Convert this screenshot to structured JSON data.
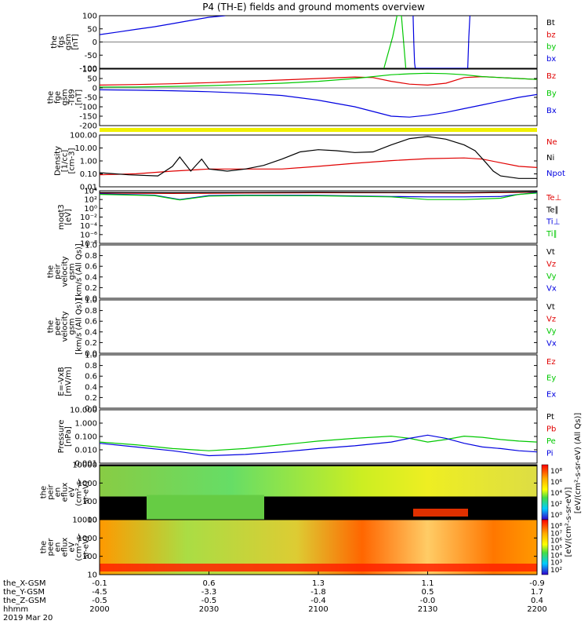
{
  "title": "P4 (TH-E) fields and ground moments overview",
  "colors": {
    "black": "#000000",
    "red": "#e00000",
    "green": "#00c800",
    "blue": "#0000e0",
    "yellow": "#f0f000"
  },
  "panels": [
    {
      "id": "fgs",
      "ylabel": [
        "the",
        "fgs",
        "gsm",
        "[nT]"
      ],
      "ticks": [
        "100",
        "50",
        "0",
        "-50",
        "-100"
      ],
      "legend": [
        {
          "label": "Bt",
          "color": "#000000"
        },
        {
          "label": "bz",
          "color": "#e00000"
        },
        {
          "label": "by",
          "color": "#00c800"
        },
        {
          "label": "bx",
          "color": "#0000e0"
        }
      ]
    },
    {
      "id": "fge",
      "ylabel": [
        "the",
        "fge",
        "gsm",
        "-T89",
        "[nT]"
      ],
      "ticks": [
        "100",
        "50",
        "0",
        "-50",
        "-100",
        "-150",
        "-200"
      ],
      "legend": [
        {
          "label": "Bz",
          "color": "#e00000"
        },
        {
          "label": "By",
          "color": "#00c800"
        },
        {
          "label": "Bx",
          "color": "#0000e0"
        }
      ]
    },
    {
      "id": "density",
      "ylabel": [
        "Density",
        "[1/cc]",
        "[cm-3]"
      ],
      "ticks": [
        "100.00",
        "10.00",
        "1.00",
        "0.10",
        "0.01"
      ],
      "legend": [
        {
          "label": "Ne",
          "color": "#e00000"
        },
        {
          "label": "Ni",
          "color": "#000000"
        },
        {
          "label": "Npot",
          "color": "#0000e0"
        }
      ]
    },
    {
      "id": "temperature",
      "ylabel": [
        "moqt3",
        "[eV]"
      ],
      "ticks": [
        "10⁴",
        "10²",
        "10⁰",
        "10⁻²",
        "10⁻⁴",
        "10⁻⁶",
        "10⁻⁸"
      ],
      "legend": [
        {
          "label": "Te⊥",
          "color": "#e00000"
        },
        {
          "label": "Te∥",
          "color": "#000000"
        },
        {
          "label": "Ti⊥",
          "color": "#0000e0"
        },
        {
          "label": "Ti∥",
          "color": "#00c800"
        }
      ]
    },
    {
      "id": "peir_velocity",
      "ylabel": [
        "the",
        "peir",
        "velocity",
        "gsm",
        "[km/s (All Qs)]"
      ],
      "ticks": [
        "1.0",
        "0.8",
        "0.6",
        "0.4",
        "0.2",
        "0.0"
      ],
      "legend": [
        {
          "label": "Vt",
          "color": "#000000"
        },
        {
          "label": "Vz",
          "color": "#e00000"
        },
        {
          "label": "Vy",
          "color": "#00c800"
        },
        {
          "label": "Vx",
          "color": "#0000e0"
        }
      ]
    },
    {
      "id": "peer_velocity",
      "ylabel": [
        "the",
        "peer",
        "velocity",
        "gsm",
        "[km/s (All Qs)]"
      ],
      "ticks": [
        "1.0",
        "0.8",
        "0.6",
        "0.4",
        "0.2",
        "0.0"
      ],
      "legend": [
        {
          "label": "Vt",
          "color": "#000000"
        },
        {
          "label": "Vz",
          "color": "#e00000"
        },
        {
          "label": "Vy",
          "color": "#00c800"
        },
        {
          "label": "Vx",
          "color": "#0000e0"
        }
      ]
    },
    {
      "id": "efield",
      "ylabel": [
        "E=-VxB",
        "[mV/m]"
      ],
      "ticks": [
        "1.0",
        "0.8",
        "0.6",
        "0.4",
        "0.2",
        "0.0"
      ],
      "legend": [
        {
          "label": "Ez",
          "color": "#e00000"
        },
        {
          "label": "Ey",
          "color": "#00c800"
        },
        {
          "label": "Ex",
          "color": "#0000e0"
        }
      ]
    },
    {
      "id": "pressure",
      "ylabel": [
        "Pressure",
        "[nPa]"
      ],
      "ticks": [
        "10.000",
        "1.000",
        "0.100",
        "0.010",
        "0.001"
      ],
      "legend": [
        {
          "label": "Pt",
          "color": "#000000"
        },
        {
          "label": "Pb",
          "color": "#e00000"
        },
        {
          "label": "Pe",
          "color": "#00c800"
        },
        {
          "label": "Pi",
          "color": "#0000e0"
        }
      ],
      "units_right": "[eV/(cm²-s-sr-eV) (All Qs)]"
    },
    {
      "id": "peir_eflux",
      "ylabel": [
        "the",
        "peir",
        "en",
        "eflux",
        "eV",
        "(cm²-s-",
        "sr-eV)"
      ],
      "ticks": [
        "10000",
        "1000",
        "100",
        "10"
      ],
      "colorbar_ticks": [
        "10⁸",
        "10⁶",
        "10⁴",
        "10²",
        "10⁰"
      ],
      "colorbar_label": "[eV/(cm²-s-sr-eV)]"
    },
    {
      "id": "peer_eflux",
      "ylabel": [
        "the",
        "peer",
        "en",
        "eflux",
        "eV",
        "(cm²-s-",
        "sr-eV)"
      ],
      "ticks": [
        "10000",
        "1000",
        "100",
        "10"
      ],
      "colorbar_ticks": [
        "10⁸",
        "10⁷",
        "10⁶",
        "10⁵",
        "10⁴",
        "10³",
        "10²"
      ],
      "colorbar_label": "[eV/(cm²-s-sr-eV)]"
    }
  ],
  "x_axis": {
    "row_labels": [
      "the_X-GSM",
      "the_Y-GSM",
      "the_Z-GSM",
      "hhmm",
      "2019 Mar 20"
    ],
    "columns": [
      [
        "-0.1",
        "-4.5",
        "-0.5",
        "2000"
      ],
      [
        "0.6",
        "-3.3",
        "-0.5",
        "2030"
      ],
      [
        "1.3",
        "-1.8",
        "-0.4",
        "2100"
      ],
      [
        "1.1",
        "0.5",
        "-0.0",
        "2130"
      ],
      [
        "-0.9",
        "1.7",
        "0.4",
        "2200"
      ]
    ]
  },
  "chart_data": [
    {
      "type": "line",
      "panel": "fgs",
      "ylabel": "the fgs gsm [nT]",
      "ylim": [
        -100,
        100
      ],
      "xlim": [
        0,
        120
      ],
      "series": [
        {
          "name": "bx",
          "color": "#0000e0",
          "x": [
            0,
            5,
            10,
            15,
            20,
            25,
            30,
            34.5
          ],
          "y": [
            28,
            38,
            48,
            58,
            70,
            82,
            94,
            100
          ]
        },
        {
          "name": "by",
          "color": "#00c800",
          "x": [
            78,
            79.2,
            80.4,
            81.6,
            82.8,
            84
          ],
          "y": [
            -100,
            -40,
            20,
            100,
            100,
            -100
          ]
        },
        {
          "name": "bx",
          "color": "#0000e0",
          "x": [
            86,
            86.2,
            86.4,
            86.6,
            101,
            101.3,
            101.6
          ],
          "y": [
            100,
            0,
            -80,
            -100,
            -100,
            20,
            100
          ]
        }
      ]
    },
    {
      "type": "line",
      "panel": "fge",
      "ylabel": "the fge gsm -T89 [nT]",
      "ylim": [
        -200,
        100
      ],
      "xlim": [
        0,
        120
      ],
      "series": [
        {
          "name": "Bz",
          "color": "#e00000",
          "x": [
            0,
            10,
            20,
            30,
            40,
            50,
            60,
            70,
            75,
            80,
            85,
            90,
            95,
            100,
            105,
            110,
            115,
            120
          ],
          "y": [
            15,
            18,
            22,
            28,
            35,
            42,
            50,
            58,
            55,
            35,
            20,
            15,
            25,
            55,
            60,
            55,
            50,
            45
          ]
        },
        {
          "name": "By",
          "color": "#00c800",
          "x": [
            0,
            10,
            20,
            30,
            40,
            50,
            60,
            70,
            75,
            80,
            85,
            90,
            95,
            100,
            105,
            110,
            115,
            120
          ],
          "y": [
            5,
            5,
            8,
            12,
            18,
            25,
            35,
            50,
            60,
            70,
            75,
            78,
            76,
            70,
            60,
            55,
            50,
            45
          ]
        },
        {
          "name": "Bx",
          "color": "#0000e0",
          "x": [
            0,
            10,
            20,
            30,
            40,
            50,
            60,
            70,
            75,
            80,
            85,
            90,
            95,
            100,
            105,
            110,
            115,
            120
          ],
          "y": [
            -10,
            -12,
            -15,
            -20,
            -28,
            -40,
            -65,
            -100,
            -125,
            -150,
            -155,
            -145,
            -130,
            -110,
            -90,
            -70,
            -50,
            -35
          ]
        }
      ]
    },
    {
      "type": "line",
      "panel": "density",
      "ylabel": "Density [1/cc] [cm-3]",
      "yscale": "log",
      "ylim": [
        0.01,
        200
      ],
      "xlim": [
        0,
        120
      ],
      "series": [
        {
          "name": "Ne",
          "color": "#e00000",
          "x": [
            0,
            10,
            20,
            30,
            40,
            50,
            60,
            70,
            80,
            90,
            100,
            105,
            110,
            115,
            120
          ],
          "y": [
            0.1,
            0.12,
            0.2,
            0.3,
            0.3,
            0.3,
            0.5,
            0.9,
            1.5,
            2.2,
            2.5,
            2.0,
            1.0,
            0.5,
            0.4
          ]
        },
        {
          "name": "Ni",
          "color": "#000000",
          "x": [
            0,
            8,
            16,
            20,
            22,
            25,
            28,
            30,
            35,
            40,
            45,
            50,
            55,
            60,
            65,
            70,
            75,
            80,
            85,
            90,
            95,
            100,
            103,
            106,
            108,
            110,
            115,
            120
          ],
          "y": [
            0.15,
            0.1,
            0.08,
            0.5,
            3,
            0.2,
            2,
            0.3,
            0.2,
            0.3,
            0.6,
            2,
            8,
            12,
            10,
            7,
            8,
            30,
            100,
            150,
            90,
            30,
            10,
            1,
            0.2,
            0.08,
            0.05,
            0.05
          ]
        }
      ]
    },
    {
      "type": "line",
      "panel": "temperature",
      "ylabel": "moqt3 [eV]",
      "yscale": "log",
      "ylim": [
        1e-08,
        10000.0
      ],
      "xlim": [
        0,
        120
      ],
      "series": [
        {
          "name": "Te⊥",
          "color": "#e00000",
          "x": [
            0,
            20,
            40,
            60,
            80,
            100,
            120
          ],
          "y": [
            3000,
            2500,
            3000,
            3500,
            3500,
            3000,
            5000
          ]
        },
        {
          "name": "Te∥",
          "color": "#000000",
          "x": [
            0,
            20,
            40,
            60,
            80,
            100,
            120
          ],
          "y": [
            4000,
            3500,
            4000,
            4500,
            4200,
            3800,
            6000
          ]
        },
        {
          "name": "Ti⊥",
          "color": "#0000e0",
          "x": [
            0,
            15,
            22,
            30,
            40,
            60,
            80,
            90,
            100,
            110,
            115,
            120
          ],
          "y": [
            2000,
            1000,
            100,
            800,
            1000,
            900,
            500,
            400,
            400,
            500,
            1500,
            4000
          ]
        },
        {
          "name": "Ti∥",
          "color": "#00c800",
          "x": [
            0,
            15,
            22,
            30,
            40,
            60,
            80,
            90,
            100,
            110,
            115,
            120
          ],
          "y": [
            1500,
            800,
            80,
            600,
            800,
            700,
            400,
            100,
            100,
            200,
            1500,
            3000
          ]
        }
      ]
    },
    {
      "type": "line",
      "panel": "pressure",
      "ylabel": "Pressure [nPa]",
      "yscale": "log",
      "ylim": [
        0.001,
        20
      ],
      "xlim": [
        0,
        120
      ],
      "series": [
        {
          "name": "Pe",
          "color": "#00c800",
          "x": [
            0,
            10,
            20,
            30,
            40,
            50,
            60,
            70,
            80,
            85,
            90,
            95,
            100,
            105,
            110,
            115,
            120
          ],
          "y": [
            0.05,
            0.03,
            0.015,
            0.01,
            0.015,
            0.03,
            0.06,
            0.1,
            0.15,
            0.1,
            0.05,
            0.08,
            0.15,
            0.12,
            0.08,
            0.06,
            0.05
          ]
        },
        {
          "name": "Pi",
          "color": "#0000e0",
          "x": [
            0,
            10,
            20,
            30,
            40,
            50,
            60,
            70,
            80,
            85,
            90,
            95,
            100,
            105,
            110,
            115,
            120
          ],
          "y": [
            0.04,
            0.02,
            0.01,
            0.004,
            0.005,
            0.008,
            0.015,
            0.025,
            0.05,
            0.1,
            0.18,
            0.1,
            0.04,
            0.02,
            0.015,
            0.01,
            0.008
          ]
        }
      ]
    },
    {
      "type": "heatmap",
      "panel": "peir_eflux",
      "ylabel": "the peir en eflux eV (cm²-s-sr-eV)",
      "yscale": "log",
      "ylim": [
        5,
        30000
      ],
      "xlim": [
        0,
        120
      ]
    },
    {
      "type": "heatmap",
      "panel": "peer_eflux",
      "ylabel": "the peer en eflux eV (cm²-s-sr-eV)",
      "yscale": "log",
      "ylim": [
        5,
        30000
      ],
      "xlim": [
        0,
        120
      ]
    }
  ]
}
